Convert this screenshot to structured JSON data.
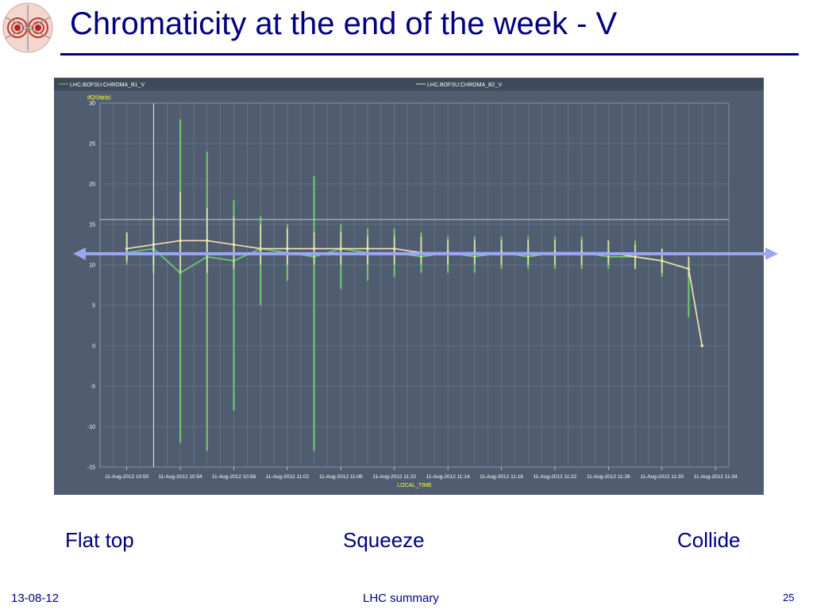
{
  "slide": {
    "title": "Chromaticity at the end of the week - V",
    "phase_labels": [
      "Flat top",
      "Squeeze",
      "Collide"
    ],
    "footer": {
      "date": "13-08-12",
      "center": "LHC summary",
      "page": "25"
    },
    "colors": {
      "title": "#000080",
      "plot_background": "#505d70",
      "arrow": "#9aa6ee",
      "series_b1": "#6fd06a",
      "series_b2": "#f5e2b0",
      "axis_label": "#ffff33"
    }
  },
  "chart_data": {
    "type": "line",
    "title": "",
    "ylabel": "dQ/(dp/p)",
    "xlabel": "LOCAL_TIME",
    "ylim": [
      -15,
      30
    ],
    "yticks": [
      30,
      25,
      20,
      15,
      10,
      5,
      0,
      -5,
      -10,
      -15
    ],
    "xticks": [
      "11-Aug-2012 10:50",
      "11-Aug-2012 10:54",
      "11-Aug-2012 10:58",
      "11-Aug-2012 11:02",
      "11-Aug-2012 11:06",
      "11-Aug-2012 11:10",
      "11-Aug-2012 11:14",
      "11-Aug-2012 11:18",
      "11-Aug-2012 11:22",
      "11-Aug-2012 11:26",
      "11-Aug-2012 11:30",
      "11-Aug-2012 11:34"
    ],
    "x": [
      "10:50",
      "10:52",
      "10:54",
      "10:56",
      "10:58",
      "11:00",
      "11:02",
      "11:04",
      "11:06",
      "11:08",
      "11:10",
      "11:12",
      "11:14",
      "11:16",
      "11:18",
      "11:20",
      "11:22",
      "11:24",
      "11:26",
      "11:28",
      "11:30",
      "11:32",
      "11:33"
    ],
    "grid": true,
    "legend_position": "top",
    "series": [
      {
        "name": "LHC.BOFSU:CHROMA_B1_V",
        "values": [
          11.5,
          12.0,
          9.0,
          11.0,
          10.5,
          12.0,
          11.5,
          11.0,
          12.0,
          11.5,
          11.5,
          11.0,
          11.5,
          11.0,
          11.5,
          11.0,
          11.5,
          11.5,
          11.0,
          11.0,
          10.5,
          9.5,
          0
        ],
        "spread_min": [
          10.0,
          9.0,
          -12.0,
          -13.0,
          -8.0,
          5.0,
          8.0,
          -13.0,
          7.0,
          8.0,
          8.5,
          9.0,
          9.0,
          9.0,
          9.5,
          9.5,
          9.5,
          9.5,
          9.5,
          9.5,
          8.5,
          3.5,
          0
        ],
        "spread_max": [
          14.0,
          16.0,
          28.0,
          24.0,
          18.0,
          16.0,
          15.0,
          21.0,
          15.0,
          14.5,
          14.5,
          14.0,
          13.5,
          13.5,
          13.5,
          13.5,
          13.5,
          13.5,
          13.0,
          13.0,
          12.0,
          11.0,
          0
        ]
      },
      {
        "name": "LHC.BOFSU:CHROMA_B2_V",
        "values": [
          12.0,
          12.5,
          13.0,
          13.0,
          12.5,
          12.0,
          12.0,
          12.0,
          12.0,
          12.0,
          12.0,
          11.5,
          11.5,
          11.5,
          11.5,
          11.5,
          11.5,
          11.5,
          11.5,
          11.0,
          10.5,
          9.5,
          0
        ],
        "spread_min": [
          10.5,
          10.0,
          9.0,
          9.0,
          9.5,
          10.0,
          10.0,
          10.0,
          10.0,
          10.0,
          10.0,
          10.0,
          10.0,
          10.0,
          10.0,
          10.0,
          10.0,
          10.0,
          10.0,
          9.5,
          9.0,
          8.5,
          0
        ],
        "spread_max": [
          14.0,
          15.5,
          19.0,
          17.0,
          16.0,
          15.0,
          14.5,
          14.0,
          14.0,
          13.5,
          13.5,
          13.5,
          13.0,
          13.0,
          13.0,
          13.0,
          13.0,
          13.0,
          13.0,
          12.5,
          12.0,
          11.0,
          0
        ]
      }
    ],
    "reference_line": 15.6,
    "cursor_x": "10:52"
  }
}
